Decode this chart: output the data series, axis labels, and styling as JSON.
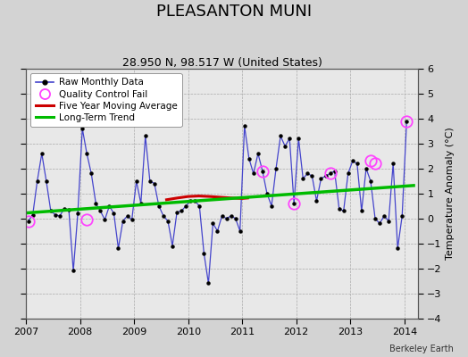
{
  "title": "PLEASANTON MUNI",
  "subtitle": "28.950 N, 98.517 W (United States)",
  "ylabel": "Temperature Anomaly (°C)",
  "credit": "Berkeley Earth",
  "xlim": [
    2007.0,
    2014.25
  ],
  "ylim": [
    -4,
    6
  ],
  "yticks": [
    -4,
    -3,
    -2,
    -1,
    0,
    1,
    2,
    3,
    4,
    5,
    6
  ],
  "xticks": [
    2007,
    2008,
    2009,
    2010,
    2011,
    2012,
    2013,
    2014
  ],
  "fig_bg": "#d3d3d3",
  "plot_bg": "#e8e8e8",
  "raw_x": [
    2007.042,
    2007.125,
    2007.208,
    2007.292,
    2007.375,
    2007.458,
    2007.542,
    2007.625,
    2007.708,
    2007.792,
    2007.875,
    2007.958,
    2008.042,
    2008.125,
    2008.208,
    2008.292,
    2008.375,
    2008.458,
    2008.542,
    2008.625,
    2008.708,
    2008.792,
    2008.875,
    2008.958,
    2009.042,
    2009.125,
    2009.208,
    2009.292,
    2009.375,
    2009.458,
    2009.542,
    2009.625,
    2009.708,
    2009.792,
    2009.875,
    2009.958,
    2010.042,
    2010.125,
    2010.208,
    2010.292,
    2010.375,
    2010.458,
    2010.542,
    2010.625,
    2010.708,
    2010.792,
    2010.875,
    2010.958,
    2011.042,
    2011.125,
    2011.208,
    2011.292,
    2011.375,
    2011.458,
    2011.542,
    2011.625,
    2011.708,
    2011.792,
    2011.875,
    2011.958,
    2012.042,
    2012.125,
    2012.208,
    2012.292,
    2012.375,
    2012.458,
    2012.542,
    2012.625,
    2012.708,
    2012.792,
    2012.875,
    2012.958,
    2013.042,
    2013.125,
    2013.208,
    2013.292,
    2013.375,
    2013.458,
    2013.542,
    2013.625,
    2013.708,
    2013.792,
    2013.875,
    2013.958,
    2014.042
  ],
  "raw_y": [
    -0.1,
    0.15,
    1.5,
    2.6,
    1.5,
    0.3,
    0.15,
    0.1,
    0.4,
    0.35,
    -2.1,
    0.2,
    3.6,
    2.6,
    1.8,
    0.6,
    0.3,
    -0.05,
    0.5,
    0.2,
    -1.2,
    -0.1,
    0.1,
    -0.05,
    1.5,
    0.6,
    3.3,
    1.5,
    1.4,
    0.5,
    0.1,
    -0.1,
    -1.1,
    0.25,
    0.3,
    0.5,
    0.7,
    0.7,
    0.5,
    -1.4,
    -2.6,
    -0.2,
    -0.5,
    0.1,
    0.0,
    0.1,
    0.0,
    -0.5,
    3.7,
    2.4,
    1.8,
    2.6,
    1.9,
    1.0,
    0.5,
    2.0,
    3.3,
    2.9,
    3.2,
    0.6,
    3.2,
    1.6,
    1.8,
    1.7,
    0.7,
    1.6,
    1.7,
    1.8,
    1.9,
    0.4,
    0.3,
    1.8,
    2.3,
    2.2,
    0.3,
    2.0,
    1.5,
    0.0,
    -0.2,
    0.1,
    -0.1,
    2.2,
    -1.2,
    0.1,
    3.9
  ],
  "qc_fail_x": [
    2007.042,
    2008.125,
    2011.375,
    2011.958,
    2012.625,
    2013.375,
    2013.458,
    2014.042
  ],
  "qc_fail_y": [
    -0.1,
    -0.05,
    1.9,
    0.6,
    1.8,
    2.3,
    2.2,
    3.9
  ],
  "moving_avg_x": [
    2009.6,
    2009.8,
    2010.0,
    2010.2,
    2010.4,
    2010.6,
    2010.8,
    2011.0,
    2011.1
  ],
  "moving_avg_y": [
    0.75,
    0.82,
    0.88,
    0.9,
    0.88,
    0.85,
    0.82,
    0.8,
    0.82
  ],
  "trend_x": [
    2007.0,
    2014.17
  ],
  "trend_y": [
    0.22,
    1.32
  ],
  "line_color": "#4444cc",
  "dot_color": "#000000",
  "qc_color": "#ff44ff",
  "moving_avg_color": "#cc0000",
  "trend_color": "#00bb00",
  "title_fontsize": 13,
  "subtitle_fontsize": 9,
  "tick_fontsize": 8,
  "ylabel_fontsize": 8
}
